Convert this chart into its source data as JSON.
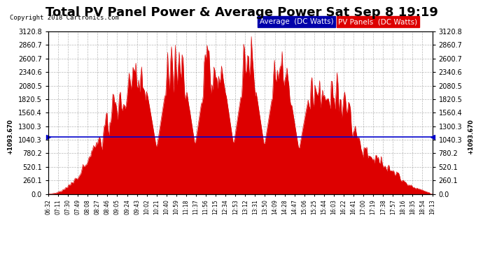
{
  "title": "Total PV Panel Power & Average Power Sat Sep 8 19:19",
  "copyright": "Copyright 2018 Cartronics.com",
  "average_value": 1093.67,
  "y_max": 3120.8,
  "y_min": 0.0,
  "y_ticks": [
    0.0,
    260.1,
    520.1,
    780.2,
    1040.3,
    1300.3,
    1560.4,
    1820.5,
    2080.5,
    2340.6,
    2600.7,
    2860.7,
    3120.8
  ],
  "legend_avg_label": "Average  (DC Watts)",
  "legend_pv_label": "PV Panels  (DC Watts)",
  "avg_line_color": "#0000cc",
  "pv_fill_color": "#dd0000",
  "background_color": "#ffffff",
  "grid_color": "#888888",
  "title_fontsize": 13,
  "x_labels": [
    "06:32",
    "07:11",
    "07:30",
    "07:49",
    "08:08",
    "08:27",
    "08:46",
    "09:05",
    "09:24",
    "09:43",
    "10:02",
    "10:21",
    "10:40",
    "10:59",
    "11:18",
    "11:37",
    "11:56",
    "12:15",
    "12:34",
    "12:53",
    "13:12",
    "13:31",
    "13:50",
    "14:09",
    "14:28",
    "14:47",
    "15:06",
    "15:25",
    "15:44",
    "16:03",
    "16:22",
    "16:41",
    "17:00",
    "17:19",
    "17:38",
    "17:57",
    "18:16",
    "18:35",
    "18:54",
    "19:13"
  ],
  "num_points": 400,
  "left_right_label": "+1093.670"
}
